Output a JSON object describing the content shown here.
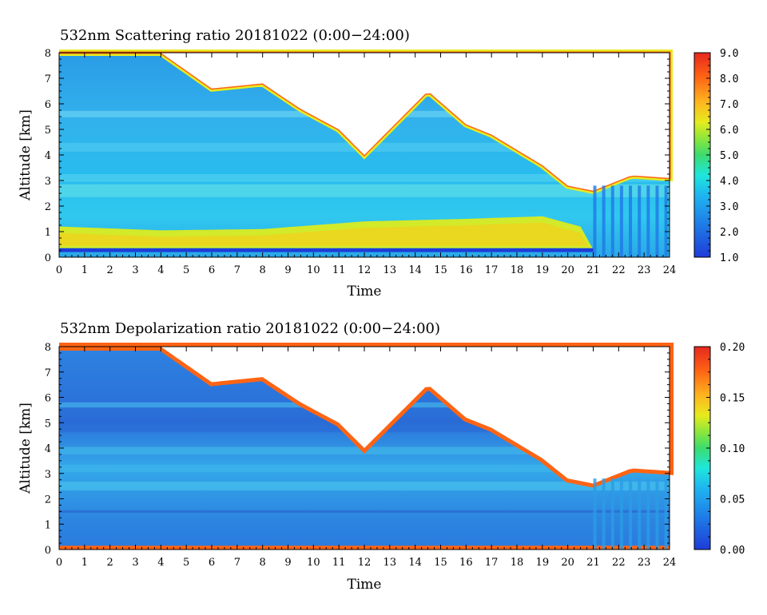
{
  "chart_data": [
    {
      "type": "heatmap",
      "title": "532nm Scattering ratio  20181022 (0:00−24:00)",
      "xlabel": "Time",
      "ylabel": "Altitude [km]",
      "xlim": [
        0,
        24
      ],
      "ylim": [
        0,
        8
      ],
      "x_ticks": [
        "0",
        "1",
        "2",
        "3",
        "4",
        "5",
        "6",
        "7",
        "8",
        "9",
        "10",
        "11",
        "12",
        "13",
        "14",
        "15",
        "16",
        "17",
        "18",
        "19",
        "20",
        "21",
        "22",
        "23",
        "24"
      ],
      "y_ticks": [
        "0",
        "1",
        "2",
        "3",
        "4",
        "5",
        "6",
        "7",
        "8"
      ],
      "colorbar": {
        "min": 1.0,
        "max": 9.0,
        "ticks": [
          "1.0",
          "2.0",
          "3.0",
          "4.0",
          "5.0",
          "6.0",
          "7.0",
          "8.0",
          "9.0"
        ]
      },
      "features": {
        "boundary_layer_top_km": [
          [
            0,
            1.2
          ],
          [
            4,
            1.05
          ],
          [
            8,
            1.1
          ],
          [
            12,
            1.4
          ],
          [
            16,
            1.5
          ],
          [
            19,
            1.6
          ],
          [
            20.5,
            1.2
          ],
          [
            21,
            0.3
          ]
        ],
        "cloud_base_km": [
          [
            0,
            8.0
          ],
          [
            4,
            8.0
          ],
          [
            6,
            6.6
          ],
          [
            8,
            6.8
          ],
          [
            9.5,
            5.8
          ],
          [
            11,
            5.0
          ],
          [
            12,
            4.0
          ],
          [
            13,
            5.0
          ],
          [
            14.5,
            6.5
          ],
          [
            16,
            5.2
          ],
          [
            17,
            4.8
          ],
          [
            18,
            4.2
          ],
          [
            19,
            3.6
          ],
          [
            20,
            2.8
          ],
          [
            21,
            2.6
          ],
          [
            22.5,
            3.2
          ],
          [
            24,
            3.1
          ]
        ]
      }
    },
    {
      "type": "heatmap",
      "title": "532nm Depolarization ratio  20181022 (0:00−24:00)",
      "xlabel": "Time",
      "ylabel": "Altitude [km]",
      "xlim": [
        0,
        24
      ],
      "ylim": [
        0,
        8
      ],
      "x_ticks": [
        "0",
        "1",
        "2",
        "3",
        "4",
        "5",
        "6",
        "7",
        "8",
        "9",
        "10",
        "11",
        "12",
        "13",
        "14",
        "15",
        "16",
        "17",
        "18",
        "19",
        "20",
        "21",
        "22",
        "23",
        "24"
      ],
      "y_ticks": [
        "0",
        "1",
        "2",
        "3",
        "4",
        "5",
        "6",
        "7",
        "8"
      ],
      "colorbar": {
        "min": 0.0,
        "max": 0.2,
        "ticks": [
          "0.00",
          "0.05",
          "0.10",
          "0.15",
          "0.20"
        ]
      },
      "features": {
        "cloud_base_km": [
          [
            0,
            8.0
          ],
          [
            4,
            8.0
          ],
          [
            6,
            6.6
          ],
          [
            8,
            6.8
          ],
          [
            9.5,
            5.8
          ],
          [
            11,
            5.0
          ],
          [
            12,
            4.0
          ],
          [
            13,
            5.0
          ],
          [
            14.5,
            6.5
          ],
          [
            16,
            5.2
          ],
          [
            17,
            4.8
          ],
          [
            18,
            4.2
          ],
          [
            19,
            3.6
          ],
          [
            20,
            2.8
          ],
          [
            21,
            2.6
          ],
          [
            22.5,
            3.2
          ],
          [
            24,
            3.1
          ]
        ]
      }
    }
  ]
}
